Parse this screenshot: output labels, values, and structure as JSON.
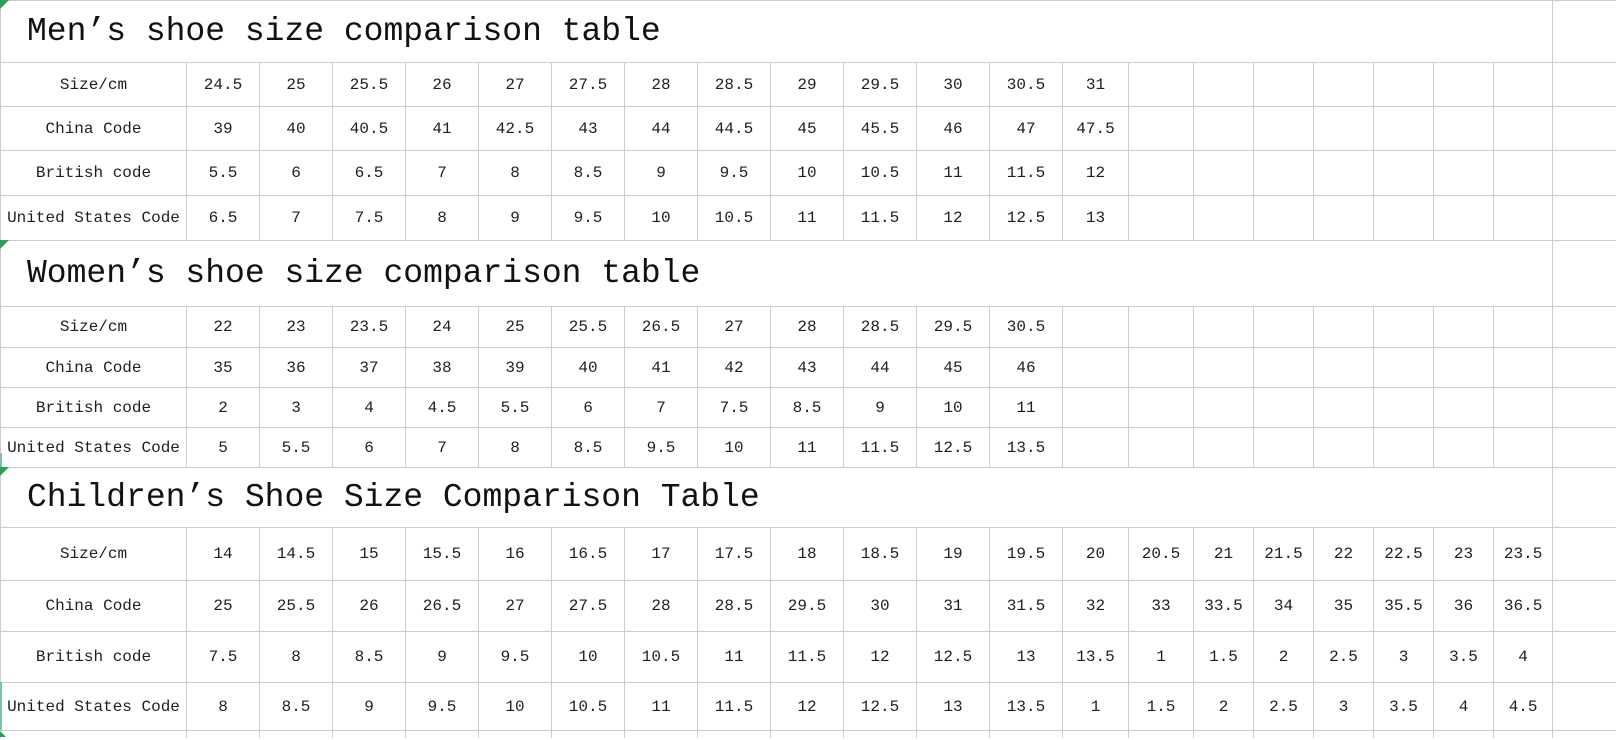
{
  "colors": {
    "grid_line": "#cdcdcd",
    "text": "#1e1e1e",
    "background": "#ffffff",
    "corner_marker_green": "#2f9e50",
    "edge_marker_teal": "#7fbfa8"
  },
  "tables": [
    {
      "id": "mens",
      "title": "Men’s shoe size comparison table",
      "rows": [
        {
          "label": "Size/cm",
          "values": [
            "24.5",
            "25",
            "25.5",
            "26",
            "27",
            "27.5",
            "28",
            "28.5",
            "29",
            "29.5",
            "30",
            "30.5",
            "31"
          ]
        },
        {
          "label": "China Code",
          "values": [
            "39",
            "40",
            "40.5",
            "41",
            "42.5",
            "43",
            "44",
            "44.5",
            "45",
            "45.5",
            "46",
            "47",
            "47.5"
          ]
        },
        {
          "label": "British code",
          "values": [
            "5.5",
            "6",
            "6.5",
            "7",
            "8",
            "8.5",
            "9",
            "9.5",
            "10",
            "10.5",
            "11",
            "11.5",
            "12"
          ]
        },
        {
          "label": "United States Code",
          "values": [
            "6.5",
            "7",
            "7.5",
            "8",
            "9",
            "9.5",
            "10",
            "10.5",
            "11",
            "11.5",
            "12",
            "12.5",
            "13"
          ]
        }
      ]
    },
    {
      "id": "womens",
      "title": "Women’s shoe size comparison table",
      "rows": [
        {
          "label": "Size/cm",
          "values": [
            "22",
            "23",
            "23.5",
            "24",
            "25",
            "25.5",
            "26.5",
            "27",
            "28",
            "28.5",
            "29.5",
            "30.5"
          ]
        },
        {
          "label": "China Code",
          "values": [
            "35",
            "36",
            "37",
            "38",
            "39",
            "40",
            "41",
            "42",
            "43",
            "44",
            "45",
            "46"
          ]
        },
        {
          "label": "British code",
          "values": [
            "2",
            "3",
            "4",
            "4.5",
            "5.5",
            "6",
            "7",
            "7.5",
            "8.5",
            "9",
            "10",
            "11"
          ]
        },
        {
          "label": "United States Code",
          "values": [
            "5",
            "5.5",
            "6",
            "7",
            "8",
            "8.5",
            "9.5",
            "10",
            "11",
            "11.5",
            "12.5",
            "13.5"
          ]
        }
      ]
    },
    {
      "id": "childrens",
      "title": "Children’s Shoe Size Comparison Table",
      "rows": [
        {
          "label": "Size/cm",
          "values": [
            "14",
            "14.5",
            "15",
            "15.5",
            "16",
            "16.5",
            "17",
            "17.5",
            "18",
            "18.5",
            "19",
            "19.5",
            "20",
            "20.5",
            "21",
            "21.5",
            "22",
            "22.5",
            "23",
            "23.5"
          ]
        },
        {
          "label": "China Code",
          "values": [
            "25",
            "25.5",
            "26",
            "26.5",
            "27",
            "27.5",
            "28",
            "28.5",
            "29.5",
            "30",
            "31",
            "31.5",
            "32",
            "33",
            "33.5",
            "34",
            "35",
            "35.5",
            "36",
            "36.5"
          ]
        },
        {
          "label": "British code",
          "values": [
            "7.5",
            "8",
            "8.5",
            "9",
            "9.5",
            "10",
            "10.5",
            "11",
            "11.5",
            "12",
            "12.5",
            "13",
            "13.5",
            "1",
            "1.5",
            "2",
            "2.5",
            "3",
            "3.5",
            "4"
          ]
        },
        {
          "label": "United States Code",
          "values": [
            "8",
            "8.5",
            "9",
            "9.5",
            "10",
            "10.5",
            "11",
            "11.5",
            "12",
            "12.5",
            "13",
            "13.5",
            "1",
            "1.5",
            "2",
            "2.5",
            "3",
            "3.5",
            "4",
            "4.5"
          ]
        }
      ]
    }
  ]
}
